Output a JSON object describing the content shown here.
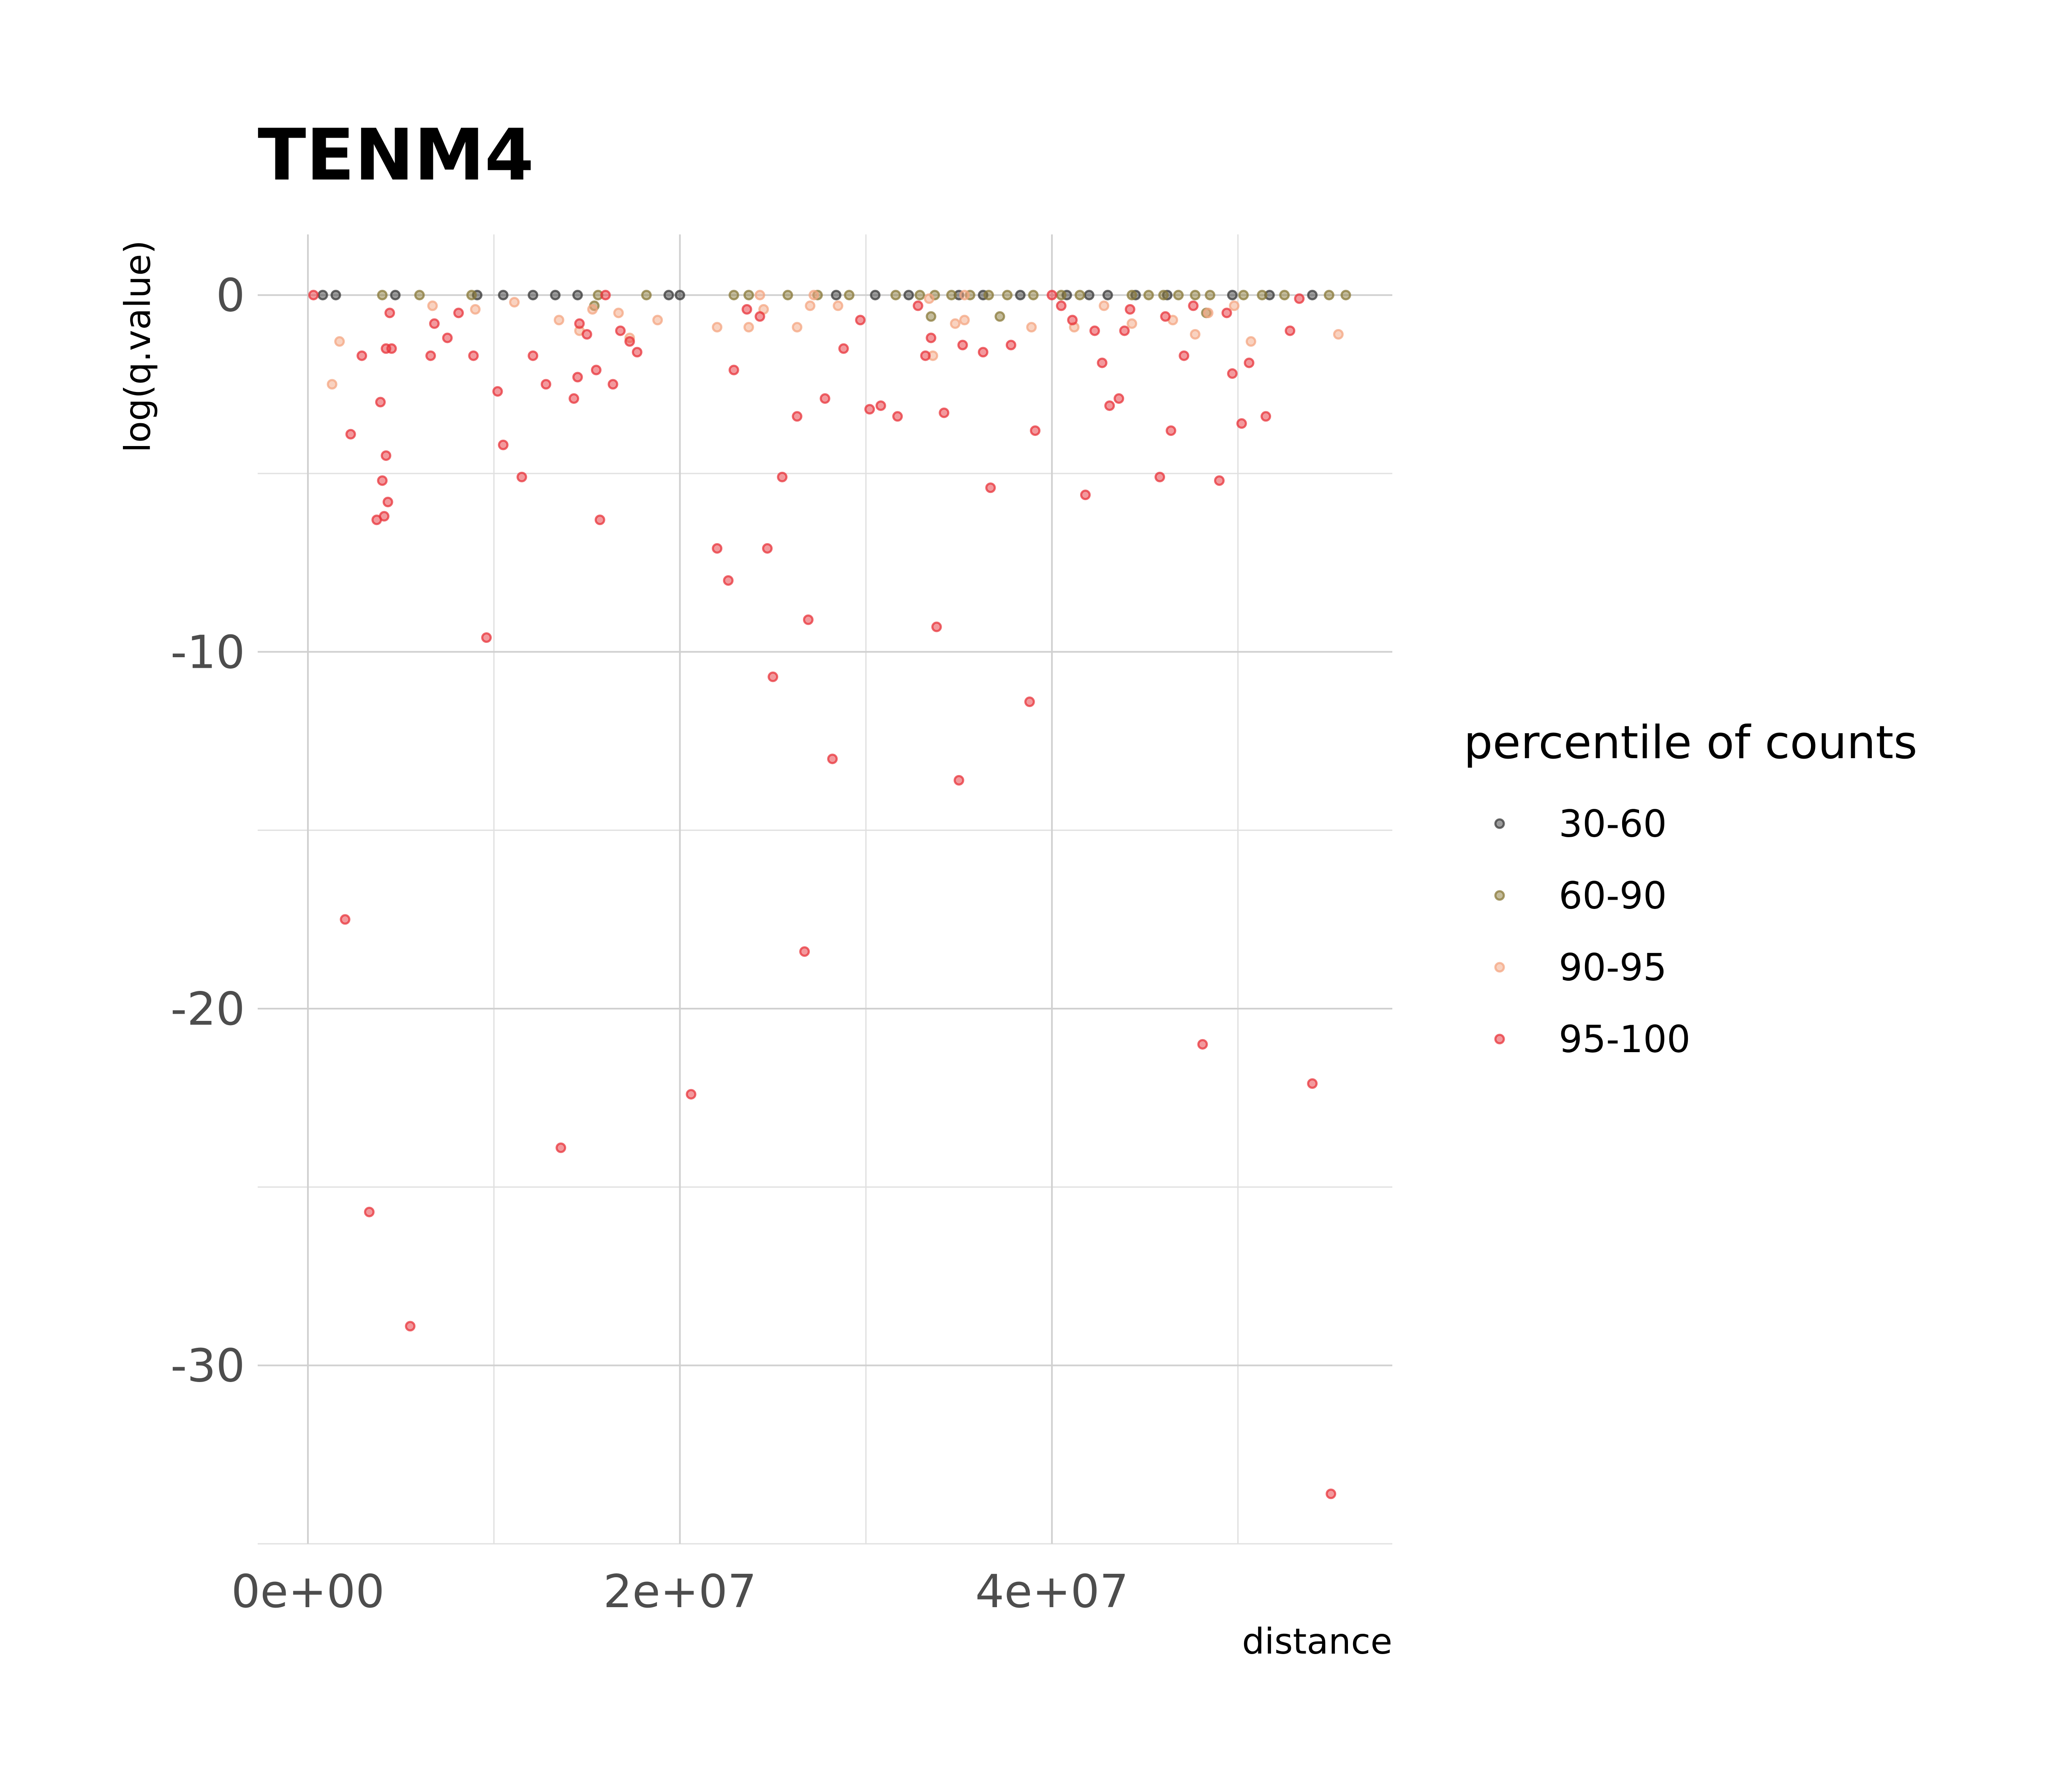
{
  "chart_data": {
    "type": "scatter",
    "title": "TENM4",
    "xlabel": "distance",
    "ylabel": "log(q.value)",
    "xlim": [
      -2700000,
      58300000
    ],
    "ylim": [
      -35,
      1.7
    ],
    "x_ticks": [
      0,
      20000000,
      40000000
    ],
    "x_tick_labels": [
      "0e+00",
      "2e+07",
      "4e+07"
    ],
    "y_ticks": [
      0,
      -10,
      -20,
      -30
    ],
    "y_tick_labels": [
      "0",
      "-10",
      "-20",
      "-30"
    ],
    "grid": true,
    "legend": {
      "title": "percentile of counts",
      "position": "right"
    },
    "series": [
      {
        "name": "30-60",
        "color": "#3a3a3a",
        "x": [
          800000,
          1500000,
          4700000,
          9100000,
          10500000,
          12100000,
          13300000,
          14500000,
          19400000,
          20000000,
          28400000,
          30500000,
          32300000,
          35000000,
          36300000,
          38300000,
          40800000,
          42000000,
          43000000,
          44500000,
          46200000,
          49700000,
          51700000,
          54000000
        ],
        "y": [
          0,
          0,
          0,
          0,
          0,
          0,
          0,
          0,
          0,
          0,
          0,
          0,
          0,
          0,
          0,
          0,
          0,
          0,
          0,
          0,
          0,
          0,
          0,
          0
        ]
      },
      {
        "name": "60-90",
        "color": "#8a7a3a",
        "x": [
          4000000,
          6000000,
          8800000,
          15600000,
          18200000,
          22900000,
          23700000,
          25800000,
          27400000,
          29100000,
          31600000,
          32900000,
          33700000,
          34600000,
          35600000,
          36600000,
          37600000,
          39000000,
          40500000,
          41500000,
          44300000,
          45200000,
          46000000,
          46800000,
          47700000,
          48500000,
          50300000,
          51300000,
          52500000,
          54900000,
          55800000,
          33500000,
          37200000,
          15400000,
          48300000
        ],
        "y": [
          0,
          0,
          0,
          0,
          0,
          0,
          0,
          0,
          0,
          0,
          0,
          0,
          0,
          0,
          0,
          0,
          0,
          0,
          0,
          0,
          0,
          0,
          0,
          0,
          0,
          0,
          0,
          0,
          0,
          0,
          0,
          -0.6,
          -0.6,
          -0.3,
          -0.5
        ]
      },
      {
        "name": "90-95",
        "color": "#f4a582",
        "x": [
          1700000,
          1300000,
          6700000,
          9000000,
          11100000,
          13500000,
          14600000,
          15300000,
          16700000,
          17300000,
          18800000,
          22000000,
          23700000,
          24500000,
          26300000,
          27000000,
          28500000,
          33400000,
          33600000,
          34800000,
          35300000,
          38900000,
          41200000,
          42800000,
          44300000,
          46500000,
          47700000,
          48400000,
          49800000,
          50700000,
          55400000,
          24300000,
          27200000,
          35300000
        ],
        "y": [
          -1.3,
          -2.5,
          -0.3,
          -0.4,
          -0.2,
          -0.7,
          -1.0,
          -0.4,
          -0.5,
          -1.2,
          -0.7,
          -0.9,
          -0.9,
          -0.4,
          -0.9,
          -0.3,
          -0.3,
          -0.1,
          -1.7,
          -0.8,
          -0.7,
          -0.9,
          -0.9,
          -0.3,
          -0.8,
          -0.7,
          -1.1,
          -0.5,
          -0.3,
          -1.3,
          -1.1,
          0,
          0,
          0
        ]
      },
      {
        "name": "95-100",
        "color": "#e8343b",
        "x": [
          300000,
          2000000,
          2300000,
          2900000,
          3700000,
          3900000,
          4100000,
          4300000,
          4400000,
          4200000,
          4000000,
          4200000,
          4500000,
          5500000,
          3300000,
          6600000,
          6800000,
          7500000,
          8100000,
          8900000,
          9600000,
          10200000,
          10500000,
          11500000,
          12100000,
          12800000,
          13600000,
          14300000,
          14500000,
          14600000,
          15000000,
          15500000,
          15700000,
          16400000,
          16800000,
          17300000,
          17700000,
          20600000,
          22000000,
          22600000,
          22900000,
          23600000,
          24300000,
          24700000,
          25000000,
          25500000,
          26300000,
          26700000,
          26900000,
          27800000,
          28200000,
          28800000,
          29700000,
          30200000,
          30800000,
          31700000,
          32800000,
          33200000,
          33500000,
          33800000,
          34200000,
          35000000,
          35200000,
          36300000,
          36700000,
          37800000,
          38800000,
          39100000,
          40500000,
          41100000,
          41800000,
          42300000,
          42700000,
          43100000,
          43600000,
          43900000,
          44200000,
          45800000,
          46100000,
          46400000,
          47100000,
          47600000,
          48100000,
          49000000,
          49400000,
          49700000,
          50200000,
          50600000,
          51500000,
          52800000,
          53300000,
          54000000,
          55000000,
          16000000,
          40000000
        ],
        "y": [
          0,
          -17.5,
          -3.9,
          -1.7,
          -6.3,
          -3.0,
          -6.2,
          -5.8,
          -0.5,
          -1.5,
          -5.2,
          -4.5,
          -1.5,
          -28.9,
          -25.7,
          -1.7,
          -0.8,
          -1.2,
          -0.5,
          -1.7,
          -9.6,
          -2.7,
          -4.2,
          -5.1,
          -1.7,
          -2.5,
          -23.9,
          -2.9,
          -2.3,
          -0.8,
          -1.1,
          -2.1,
          -6.3,
          -2.5,
          -1.0,
          -1.3,
          -1.6,
          -22.4,
          -7.1,
          -8.0,
          -2.1,
          -0.4,
          -0.6,
          -7.1,
          -10.7,
          -5.1,
          -3.4,
          -18.4,
          -9.1,
          -2.9,
          -13.0,
          -1.5,
          -0.7,
          -3.2,
          -3.1,
          -3.4,
          -0.3,
          -1.7,
          -1.2,
          -9.3,
          -3.3,
          -13.6,
          -1.4,
          -1.6,
          -5.4,
          -1.4,
          -11.4,
          -3.8,
          -0.3,
          -0.7,
          -5.6,
          -1.0,
          -1.9,
          -3.1,
          -2.9,
          -1.0,
          -0.4,
          -5.1,
          -0.6,
          -3.8,
          -1.7,
          -0.3,
          -21.0,
          -5.2,
          -0.5,
          -2.2,
          -3.6,
          -1.9,
          -3.4,
          -1.0,
          -0.1,
          -22.1,
          -33.6,
          0,
          0
        ]
      }
    ]
  }
}
